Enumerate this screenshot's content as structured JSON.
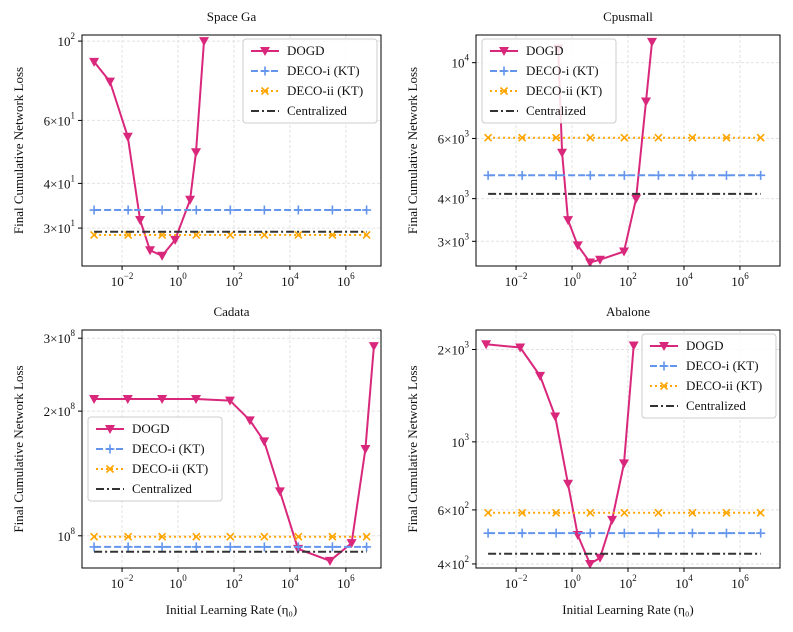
{
  "chart_data": [
    {
      "type": "line",
      "title": "Space Ga",
      "ylabel": "Final Cumulative Network Loss",
      "log_x": true,
      "log_y": true,
      "grid": true,
      "legend": "upper right",
      "xlim": [
        0.00037,
        18000000
      ],
      "ylim": [
        23.5,
        104
      ],
      "xticks": [
        {
          "value": 0.01,
          "label": "10^−2"
        },
        {
          "value": 1,
          "label": "10^0"
        },
        {
          "value": 100,
          "label": "10^2"
        },
        {
          "value": 10000,
          "label": "10^4"
        },
        {
          "value": 1000000,
          "label": "10^6"
        }
      ],
      "yticks": [
        {
          "value": 30,
          "label": "3×10^1"
        },
        {
          "value": 40,
          "label": "4×10^1"
        },
        {
          "value": 60,
          "label": "6×10^1"
        },
        {
          "value": 100,
          "label": "10^2"
        }
      ],
      "series": [
        {
          "name": "DOGD",
          "color": "#d9287c",
          "marker": "triangle-down",
          "linestyle": "solid",
          "x": [
            0.001,
            0.0037,
            0.016,
            0.044,
            0.1,
            0.27,
            0.79,
            2.7,
            4.4,
            8.5
          ],
          "values": [
            87.5,
            77,
            54,
            31.6,
            26,
            25.1,
            27.8,
            36,
            48.9,
            100
          ]
        },
        {
          "name": "DECO-i (KT)",
          "color": "#6495ed",
          "marker": "plus",
          "linestyle": "dashed",
          "x": [
            0.001,
            0.0165,
            0.27,
            4.5,
            74,
            1220,
            20000,
            330000,
            5500000
          ],
          "values": [
            33.7,
            33.7,
            33.7,
            33.7,
            33.7,
            33.7,
            33.7,
            33.7,
            33.7
          ]
        },
        {
          "name": "DECO-ii (KT)",
          "color": "#ffa500",
          "marker": "x",
          "linestyle": "dotted",
          "x": [
            0.001,
            0.0165,
            0.27,
            4.5,
            74,
            1220,
            20000,
            330000,
            5500000
          ],
          "values": [
            28.7,
            28.7,
            28.7,
            28.7,
            28.7,
            28.7,
            28.7,
            28.7,
            28.7
          ]
        },
        {
          "name": "Centralized",
          "color": "#333333",
          "marker": "none",
          "linestyle": "dashdot",
          "x": [
            0.001,
            5500000
          ],
          "values": [
            29.3,
            29.3
          ]
        }
      ]
    },
    {
      "type": "line",
      "title": "Cpusmall",
      "ylabel": "Final Cumulative Network Loss",
      "log_x": true,
      "log_y": true,
      "grid": true,
      "legend": "upper left",
      "xlim": [
        0.00037,
        27000000
      ],
      "ylim": [
        2540,
        12050
      ],
      "xticks": [
        {
          "value": 0.01,
          "label": "10^−2"
        },
        {
          "value": 1,
          "label": "10^0"
        },
        {
          "value": 100,
          "label": "10^2"
        },
        {
          "value": 10000,
          "label": "10^4"
        },
        {
          "value": 1000000,
          "label": "10^6"
        }
      ],
      "yticks": [
        {
          "value": 3000,
          "label": "3×10^3"
        },
        {
          "value": 4000,
          "label": "4×10^3"
        },
        {
          "value": 6000,
          "label": "6×10^3"
        },
        {
          "value": 10000,
          "label": "10^4"
        }
      ],
      "series": [
        {
          "name": "DOGD",
          "color": "#d9287c",
          "marker": "triangle-down",
          "linestyle": "solid",
          "x": [
            0.32,
            0.44,
            0.72,
            1.6,
            4.4,
            10,
            72,
            195,
            440,
            720
          ],
          "values": [
            11000,
            5450,
            3460,
            2920,
            2600,
            2650,
            2800,
            4000,
            7700,
            11500
          ]
        },
        {
          "name": "DECO-i (KT)",
          "color": "#6495ed",
          "marker": "plus",
          "linestyle": "dashed",
          "x": [
            0.001,
            0.0165,
            0.27,
            4.5,
            74,
            1220,
            20000,
            330000,
            5500000
          ],
          "values": [
            4680,
            4680,
            4680,
            4680,
            4680,
            4680,
            4680,
            4680,
            4680
          ]
        },
        {
          "name": "DECO-ii (KT)",
          "color": "#ffa500",
          "marker": "x",
          "linestyle": "dotted",
          "x": [
            0.001,
            0.0165,
            0.27,
            4.5,
            74,
            1220,
            20000,
            330000,
            5500000
          ],
          "values": [
            6030,
            6030,
            6030,
            6030,
            6030,
            6030,
            6030,
            6030,
            6030
          ]
        },
        {
          "name": "Centralized",
          "color": "#333333",
          "marker": "none",
          "linestyle": "dashdot",
          "x": [
            0.001,
            5500000
          ],
          "values": [
            4130,
            4130
          ]
        }
      ]
    },
    {
      "type": "line",
      "title": "Cadata",
      "ylabel": "Final Cumulative Network Loss",
      "xlabel": "Initial Learning Rate (η₀)",
      "log_x": true,
      "log_y": true,
      "grid": true,
      "legend": "center left",
      "xlim": [
        0.00037,
        18000000
      ],
      "ylim": [
        83600000,
        314000000
      ],
      "xticks": [
        {
          "value": 0.01,
          "label": "10^−2"
        },
        {
          "value": 1,
          "label": "10^0"
        },
        {
          "value": 100,
          "label": "10^2"
        },
        {
          "value": 10000,
          "label": "10^4"
        },
        {
          "value": 1000000,
          "label": "10^6"
        }
      ],
      "yticks": [
        {
          "value": 100000000,
          "label": "10^8"
        },
        {
          "value": 200000000,
          "label": "2×10^8"
        },
        {
          "value": 300000000,
          "label": "3×10^8"
        }
      ],
      "series": [
        {
          "name": "DOGD",
          "color": "#d9287c",
          "marker": "triangle-down",
          "linestyle": "solid",
          "x": [
            0.001,
            0.016,
            0.27,
            4.4,
            72,
            370,
            1200,
            4400,
            19500,
            270000,
            1600000,
            5000000,
            10000000
          ],
          "values": [
            214000000,
            214000000,
            214000000,
            214000000,
            212000000,
            190000000,
            169000000,
            128000000,
            93000000,
            87000000,
            96000000,
            162000000,
            287000000
          ]
        },
        {
          "name": "DECO-i (KT)",
          "color": "#6495ed",
          "marker": "plus",
          "linestyle": "dashed",
          "x": [
            0.001,
            0.0165,
            0.27,
            4.5,
            74,
            1220,
            20000,
            330000,
            5500000
          ],
          "values": [
            94000000,
            94000000,
            94000000,
            94000000,
            94000000,
            94000000,
            94000000,
            94000000,
            94000000
          ]
        },
        {
          "name": "DECO-ii (KT)",
          "color": "#ffa500",
          "marker": "x",
          "linestyle": "dotted",
          "x": [
            0.001,
            0.0165,
            0.27,
            4.5,
            74,
            1220,
            20000,
            330000,
            5500000
          ],
          "values": [
            99500000,
            99500000,
            99500000,
            99500000,
            99500000,
            99500000,
            99500000,
            99500000,
            99500000
          ]
        },
        {
          "name": "Centralized",
          "color": "#333333",
          "marker": "none",
          "linestyle": "dashdot",
          "x": [
            0.001,
            5500000
          ],
          "values": [
            91500000,
            91500000
          ]
        }
      ]
    },
    {
      "type": "line",
      "title": "Abalone",
      "ylabel": "Final Cumulative Network Loss",
      "xlabel": "Initial Learning Rate (η₀)",
      "log_x": true,
      "log_y": true,
      "grid": true,
      "legend": "upper right",
      "xlim": [
        0.00037,
        27000000
      ],
      "ylim": [
        388,
        2315
      ],
      "xticks": [
        {
          "value": 0.01,
          "label": "10^−2"
        },
        {
          "value": 1,
          "label": "10^0"
        },
        {
          "value": 100,
          "label": "10^2"
        },
        {
          "value": 10000,
          "label": "10^4"
        },
        {
          "value": 1000000,
          "label": "10^6"
        }
      ],
      "yticks": [
        {
          "value": 400,
          "label": "4×10^2"
        },
        {
          "value": 600,
          "label": "6×10^2"
        },
        {
          "value": 1000,
          "label": "10^3"
        },
        {
          "value": 2000,
          "label": "2×10^3"
        }
      ],
      "series": [
        {
          "name": "DOGD",
          "color": "#d9287c",
          "marker": "triangle-down",
          "linestyle": "solid",
          "x": [
            0.00085,
            0.014,
            0.072,
            0.25,
            0.72,
            1.6,
            4.4,
            10,
            27,
            72,
            160
          ],
          "values": [
            2080,
            2030,
            1640,
            1210,
            730,
            497,
            400,
            419,
            557,
            851,
            2060
          ]
        },
        {
          "name": "DECO-i (KT)",
          "color": "#6495ed",
          "marker": "plus",
          "linestyle": "dashed",
          "x": [
            0.001,
            0.0165,
            0.27,
            4.5,
            74,
            1220,
            20000,
            330000,
            5500000
          ],
          "values": [
            504,
            504,
            504,
            504,
            504,
            504,
            504,
            504,
            504
          ]
        },
        {
          "name": "DECO-ii (KT)",
          "color": "#ffa500",
          "marker": "x",
          "linestyle": "dotted",
          "x": [
            0.001,
            0.0165,
            0.27,
            4.5,
            74,
            1220,
            20000,
            330000,
            5500000
          ],
          "values": [
            587,
            587,
            587,
            587,
            587,
            587,
            587,
            587,
            587
          ]
        },
        {
          "name": "Centralized",
          "color": "#333333",
          "marker": "none",
          "linestyle": "dashdot",
          "x": [
            0.001,
            5500000
          ],
          "values": [
            432,
            432
          ]
        }
      ]
    }
  ]
}
